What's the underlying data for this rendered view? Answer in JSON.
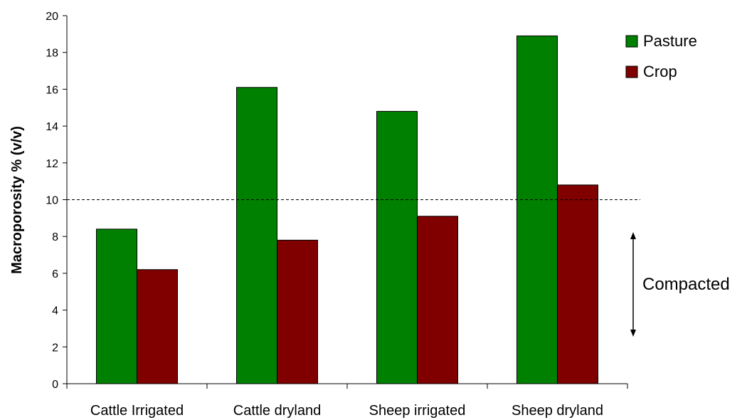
{
  "chart_data": {
    "type": "bar",
    "title": "",
    "xlabel": "",
    "ylabel": "Macroporosity % (v/v)",
    "categories": [
      "Cattle Irrigated",
      "Cattle dryland",
      "Sheep irrigated",
      "Sheep dryland"
    ],
    "series": [
      {
        "name": "Pasture",
        "values": [
          8.4,
          16.1,
          14.8,
          18.9
        ],
        "color": "#008000"
      },
      {
        "name": "Crop",
        "values": [
          6.2,
          7.8,
          9.1,
          10.8
        ],
        "color": "#800000"
      }
    ],
    "ylim": [
      0,
      20
    ],
    "yticks": [
      "0",
      "2",
      "4",
      "6",
      "8",
      "10",
      "12",
      "14",
      "16",
      "18",
      "20"
    ],
    "grid": false,
    "legend_position": "top-right",
    "reference_line": {
      "value": 10,
      "style": "dashed"
    },
    "annotation": {
      "text": "Compacted",
      "icon": "double-arrow-vertical"
    }
  }
}
